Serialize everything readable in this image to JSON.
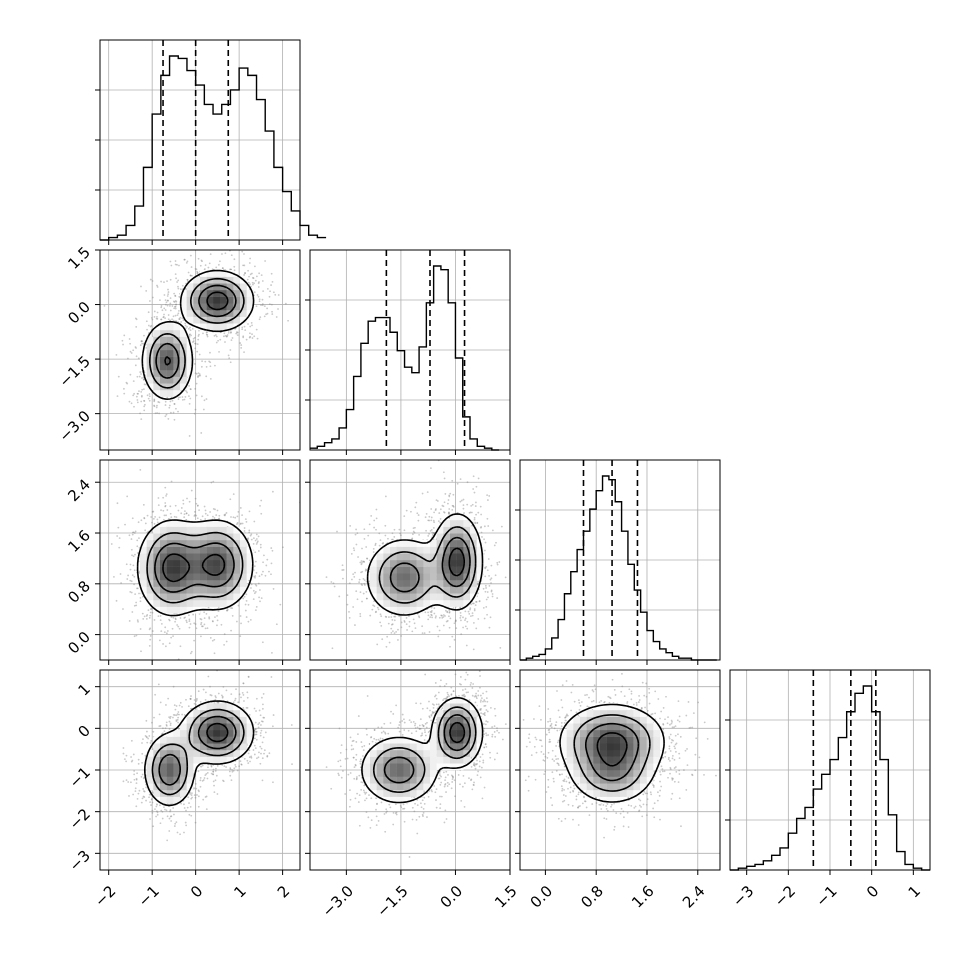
{
  "chart_data": {
    "type": "corner",
    "grid": true,
    "parameters": [
      {
        "index": 0,
        "range": [
          -2.2,
          2.4
        ],
        "ticks": [
          -2,
          -1,
          0,
          1,
          2
        ],
        "tick_labels": [
          "−2",
          "−1",
          "0",
          "1",
          "2"
        ],
        "quantiles": [
          -0.75,
          0.0,
          0.75
        ]
      },
      {
        "index": 1,
        "range": [
          -4.0,
          1.5
        ],
        "ticks": [
          -3.0,
          -1.5,
          0.0,
          1.5
        ],
        "tick_labels": [
          "−3.0",
          "−1.5",
          "0.0",
          "1.5"
        ],
        "quantiles": [
          -1.9,
          -0.7,
          0.25
        ]
      },
      {
        "index": 2,
        "range": [
          -0.4,
          2.75
        ],
        "ticks": [
          0.0,
          0.8,
          1.6,
          2.4
        ],
        "tick_labels": [
          "0.0",
          "0.8",
          "1.6",
          "2.4"
        ],
        "quantiles": [
          0.6,
          1.05,
          1.45
        ]
      },
      {
        "index": 3,
        "range": [
          -3.4,
          1.4
        ],
        "ticks": [
          -3,
          -2,
          -1,
          0,
          1
        ],
        "tick_labels": [
          "−3",
          "−2",
          "−1",
          "0",
          "1"
        ],
        "quantiles": [
          -1.4,
          -0.5,
          0.1
        ]
      }
    ],
    "histograms": [
      {
        "param": 0,
        "bin_start": -2.2,
        "bin_width": 0.2,
        "counts": [
          0,
          1,
          2,
          6,
          14,
          30,
          52,
          68,
          76,
          75,
          70,
          64,
          56,
          52,
          56,
          62,
          71,
          68,
          58,
          45,
          30,
          20,
          12,
          6,
          2,
          1
        ]
      },
      {
        "param": 1,
        "bin_start": -4.0,
        "bin_width": 0.2,
        "counts": [
          1,
          2,
          4,
          6,
          12,
          22,
          40,
          58,
          70,
          72,
          72,
          64,
          54,
          45,
          42,
          56,
          80,
          100,
          98,
          80,
          50,
          18,
          6,
          2,
          1,
          0
        ]
      },
      {
        "param": 2,
        "bin_start": -0.4,
        "bin_width": 0.1,
        "counts": [
          0,
          1,
          2,
          3,
          6,
          12,
          22,
          36,
          48,
          60,
          70,
          82,
          92,
          100,
          98,
          86,
          70,
          52,
          38,
          26,
          16,
          10,
          6,
          4,
          2,
          1,
          1,
          0,
          0,
          0,
          0
        ]
      },
      {
        "param": 3,
        "bin_start": -3.4,
        "bin_width": 0.2,
        "counts": [
          0,
          1,
          2,
          3,
          5,
          8,
          12,
          20,
          28,
          34,
          44,
          52,
          60,
          72,
          86,
          96,
          100,
          86,
          60,
          30,
          10,
          3,
          1,
          0
        ]
      }
    ],
    "joint_modes": [
      {
        "x_param": 0,
        "y_param": 1,
        "modes": [
          {
            "center": [
              -0.65,
              -1.55
            ],
            "sd": [
              0.3,
              0.55
            ],
            "weight": 1.0
          },
          {
            "center": [
              0.5,
              0.1
            ],
            "sd": [
              0.42,
              0.42
            ],
            "weight": 1.15
          }
        ]
      },
      {
        "x_param": 0,
        "y_param": 2,
        "modes": [
          {
            "center": [
              -0.55,
              1.05
            ],
            "sd": [
              0.4,
              0.38
            ],
            "weight": 1.0
          },
          {
            "center": [
              0.5,
              1.1
            ],
            "sd": [
              0.42,
              0.36
            ],
            "weight": 0.95
          }
        ]
      },
      {
        "x_param": 1,
        "y_param": 2,
        "modes": [
          {
            "center": [
              -1.4,
              0.9
            ],
            "sd": [
              0.55,
              0.32
            ],
            "weight": 0.9
          },
          {
            "center": [
              0.05,
              1.15
            ],
            "sd": [
              0.35,
              0.38
            ],
            "weight": 1.15
          }
        ]
      },
      {
        "x_param": 0,
        "y_param": 3,
        "modes": [
          {
            "center": [
              -0.6,
              -1.0
            ],
            "sd": [
              0.3,
              0.45
            ],
            "weight": 0.95
          },
          {
            "center": [
              0.5,
              -0.1
            ],
            "sd": [
              0.42,
              0.38
            ],
            "weight": 1.15
          }
        ]
      },
      {
        "x_param": 1,
        "y_param": 3,
        "modes": [
          {
            "center": [
              -1.55,
              -1.0
            ],
            "sd": [
              0.55,
              0.42
            ],
            "weight": 0.9
          },
          {
            "center": [
              0.05,
              -0.1
            ],
            "sd": [
              0.35,
              0.42
            ],
            "weight": 1.15
          }
        ]
      },
      {
        "x_param": 2,
        "y_param": 3,
        "modes": [
          {
            "center": [
              1.05,
              -0.3
            ],
            "sd": [
              0.42,
              0.45
            ],
            "weight": 1.0
          },
          {
            "center": [
              1.05,
              -1.1
            ],
            "sd": [
              0.35,
              0.4
            ],
            "weight": 0.6
          }
        ]
      }
    ],
    "colors": {
      "line": "#000000",
      "grid": "#b0b0b0",
      "hexbin_dark": "#1a1a1a",
      "hexbin_light": "#ffffff",
      "scatter": "#888888"
    }
  }
}
